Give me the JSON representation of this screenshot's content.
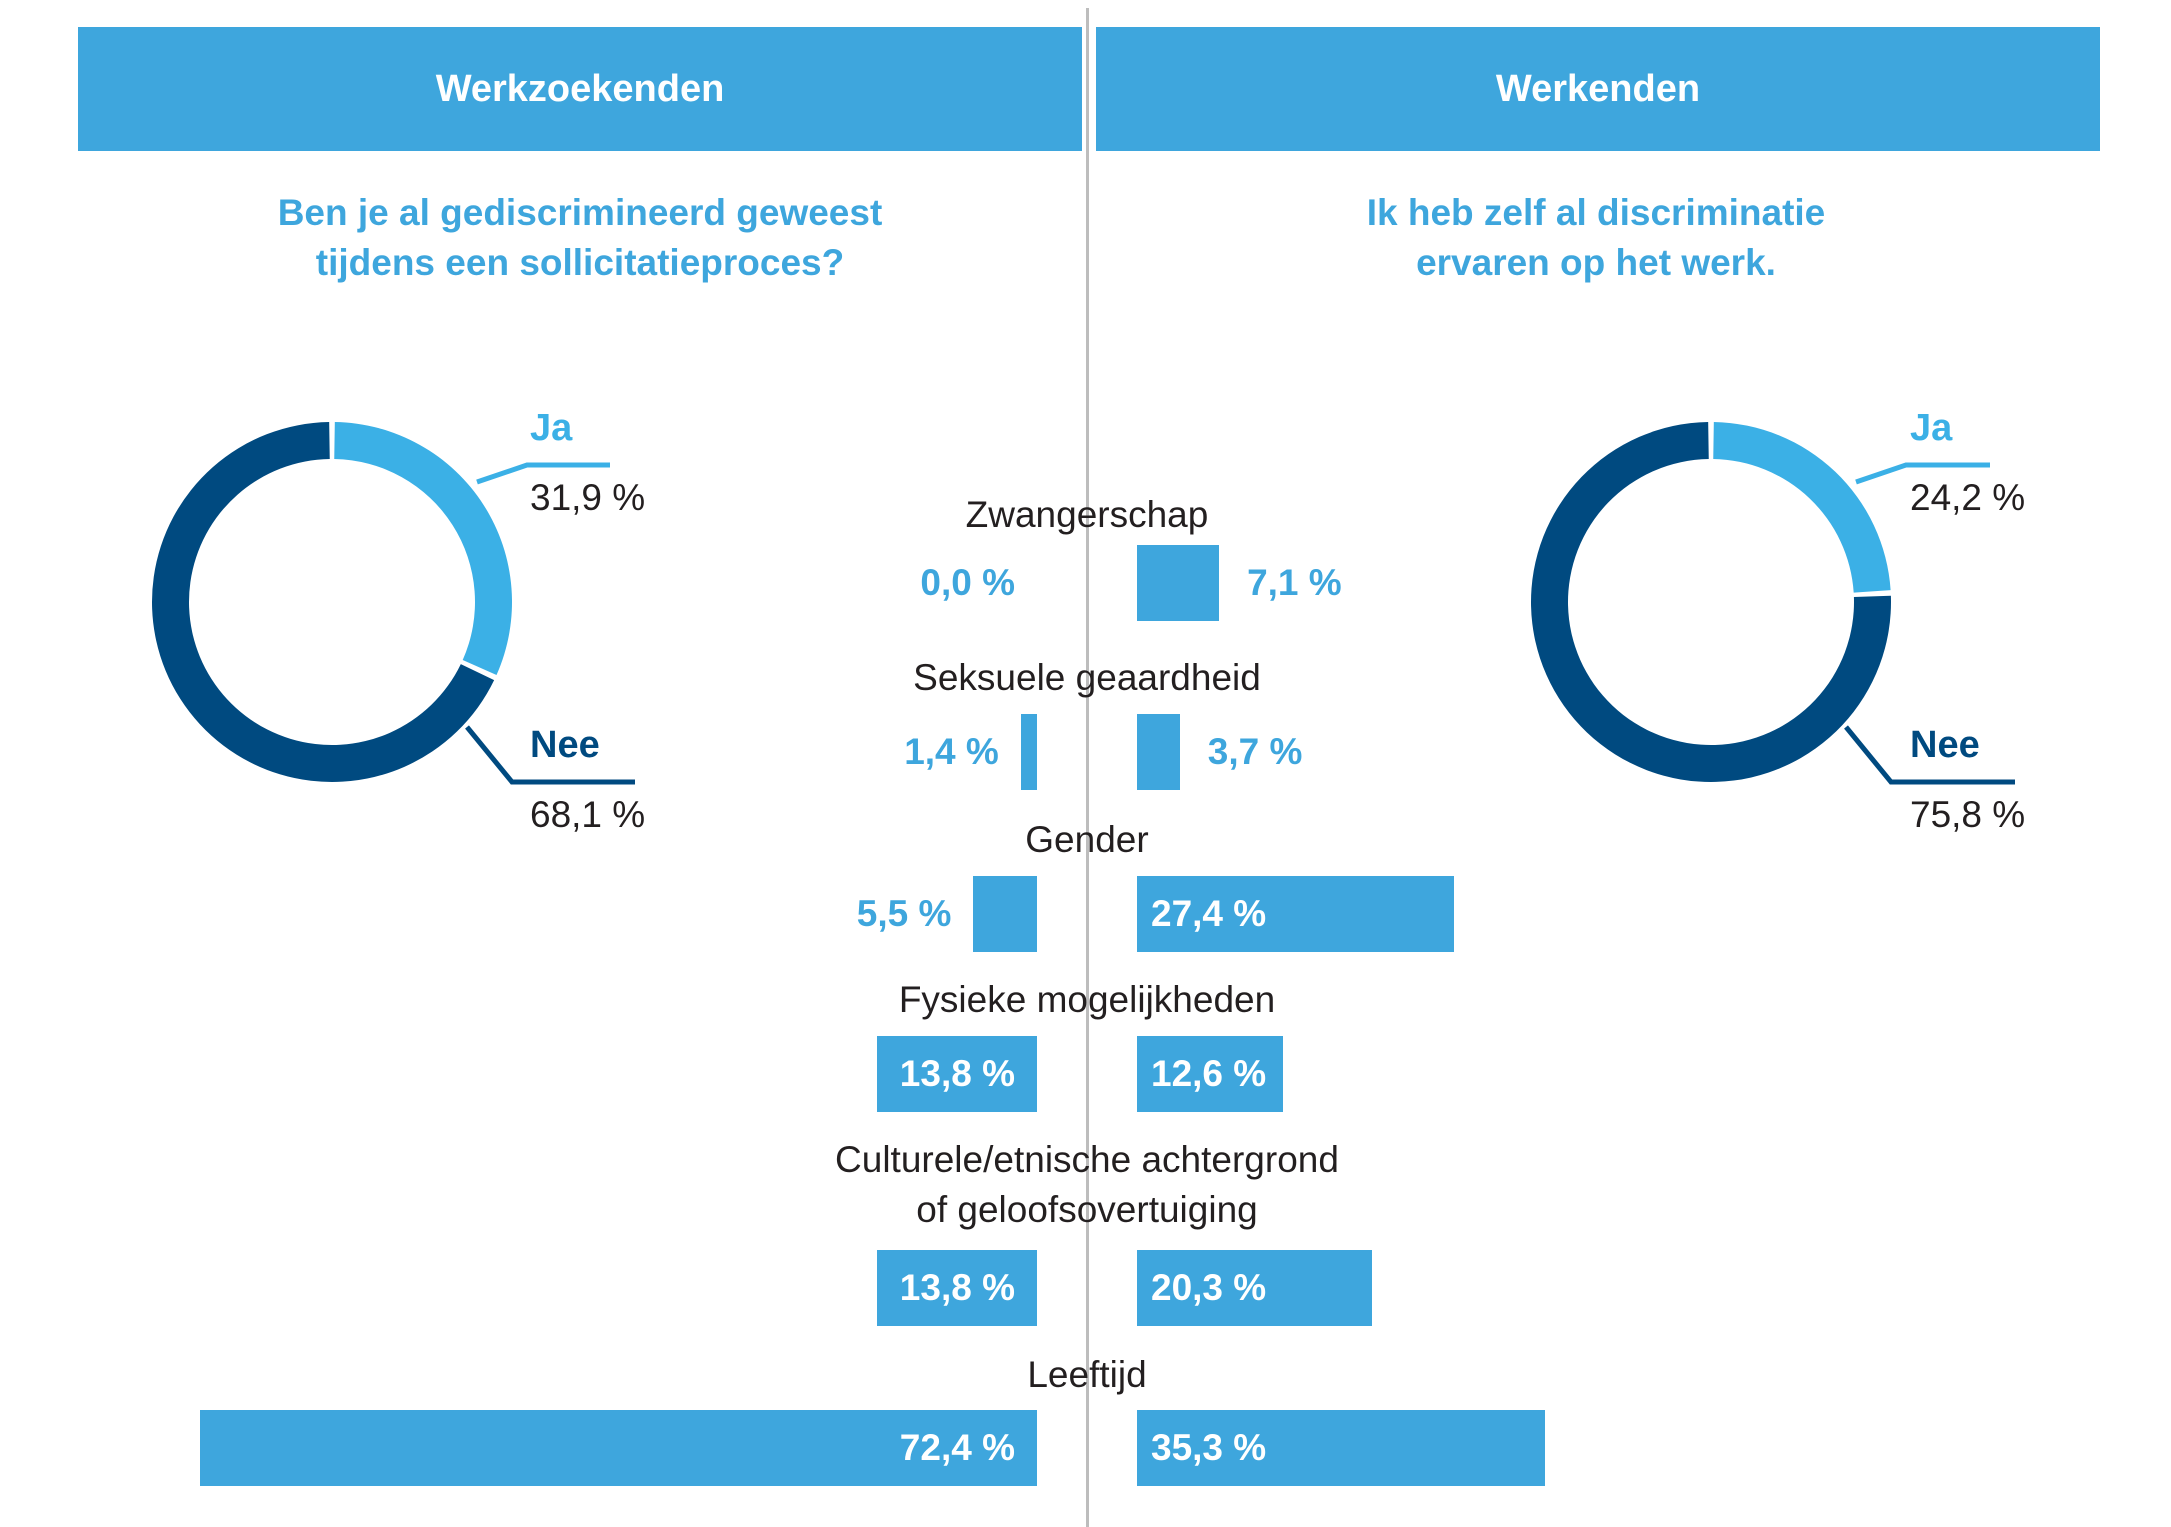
{
  "header": {
    "left_title": "Werkzoekenden",
    "right_title": "Werkenden"
  },
  "questions": {
    "left": "Ben je al gediscrimineerd geweest\ntijdens een sollicitatieproces?",
    "right": "Ik heb zelf al discriminatie\nervaren op het werk."
  },
  "colors": {
    "accent": "#3ea6dd",
    "ja": "#3bb0e6",
    "nee": "#004a80",
    "divider": "#bdbdbd",
    "text": "#231f20"
  },
  "chart_data": [
    {
      "type": "pie",
      "variant": "donut",
      "group": "Werkzoekenden",
      "labels": [
        "Ja",
        "Nee"
      ],
      "values": [
        31.9,
        68.1
      ],
      "value_labels": [
        "31,9 %",
        "68,1 %"
      ],
      "colors": [
        "#3bb0e6",
        "#004a80"
      ]
    },
    {
      "type": "pie",
      "variant": "donut",
      "group": "Werkenden",
      "labels": [
        "Ja",
        "Nee"
      ],
      "values": [
        24.2,
        75.8
      ],
      "value_labels": [
        "24,2 %",
        "75,8 %"
      ],
      "colors": [
        "#3bb0e6",
        "#004a80"
      ]
    },
    {
      "type": "bar",
      "orientation": "horizontal-butterfly",
      "categories": [
        "Zwangerschap",
        "Seksuele geaardheid",
        "Gender",
        "Fysieke mogelijkheden",
        "Culturele/etnische achtergrond\nof geloofsovertuiging",
        "Leeftijd"
      ],
      "series": [
        {
          "group": "Werkzoekenden",
          "values": [
            0.0,
            1.4,
            5.5,
            13.8,
            13.8,
            72.4
          ],
          "value_labels": [
            "0,0 %",
            "1,4 %",
            "5,5 %",
            "13,8 %",
            "13,8 %",
            "72,4 %"
          ]
        },
        {
          "group": "Werkenden",
          "values": [
            7.1,
            3.7,
            27.4,
            12.6,
            20.3,
            35.3
          ],
          "value_labels": [
            "7,1 %",
            "3,7 %",
            "27,4 %",
            "12,6 %",
            "20,3 %",
            "35,3 %"
          ]
        }
      ],
      "unit": "%"
    }
  ]
}
